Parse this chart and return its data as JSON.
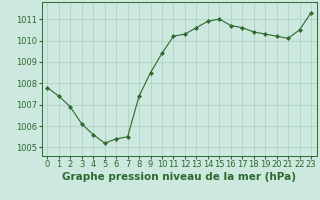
{
  "x": [
    0,
    1,
    2,
    3,
    4,
    5,
    6,
    7,
    8,
    9,
    10,
    11,
    12,
    13,
    14,
    15,
    16,
    17,
    18,
    19,
    20,
    21,
    22,
    23
  ],
  "y": [
    1007.8,
    1007.4,
    1006.9,
    1006.1,
    1005.6,
    1005.2,
    1005.4,
    1005.5,
    1007.4,
    1008.5,
    1009.4,
    1010.2,
    1010.3,
    1010.6,
    1010.9,
    1011.0,
    1010.7,
    1010.6,
    1010.4,
    1010.3,
    1010.2,
    1010.1,
    1010.5,
    1011.3
  ],
  "line_color": "#2d6a2d",
  "marker_color": "#2d6a2d",
  "bg_color": "#cce8df",
  "grid_color": "#aacfbf",
  "axis_color": "#2d6a2d",
  "xlabel": "Graphe pression niveau de la mer (hPa)",
  "xlabel_fontsize": 7.5,
  "tick_fontsize": 6.0,
  "yticks": [
    1005,
    1006,
    1007,
    1008,
    1009,
    1010,
    1011
  ],
  "xtick_labels": [
    "0",
    "1",
    "2",
    "3",
    "4",
    "5",
    "6",
    "7",
    "8",
    "9",
    "10",
    "11",
    "12",
    "13",
    "14",
    "15",
    "16",
    "17",
    "18",
    "19",
    "20",
    "21",
    "22",
    "23"
  ],
  "ylim": [
    1004.6,
    1011.8
  ],
  "xlim": [
    -0.5,
    23.5
  ]
}
